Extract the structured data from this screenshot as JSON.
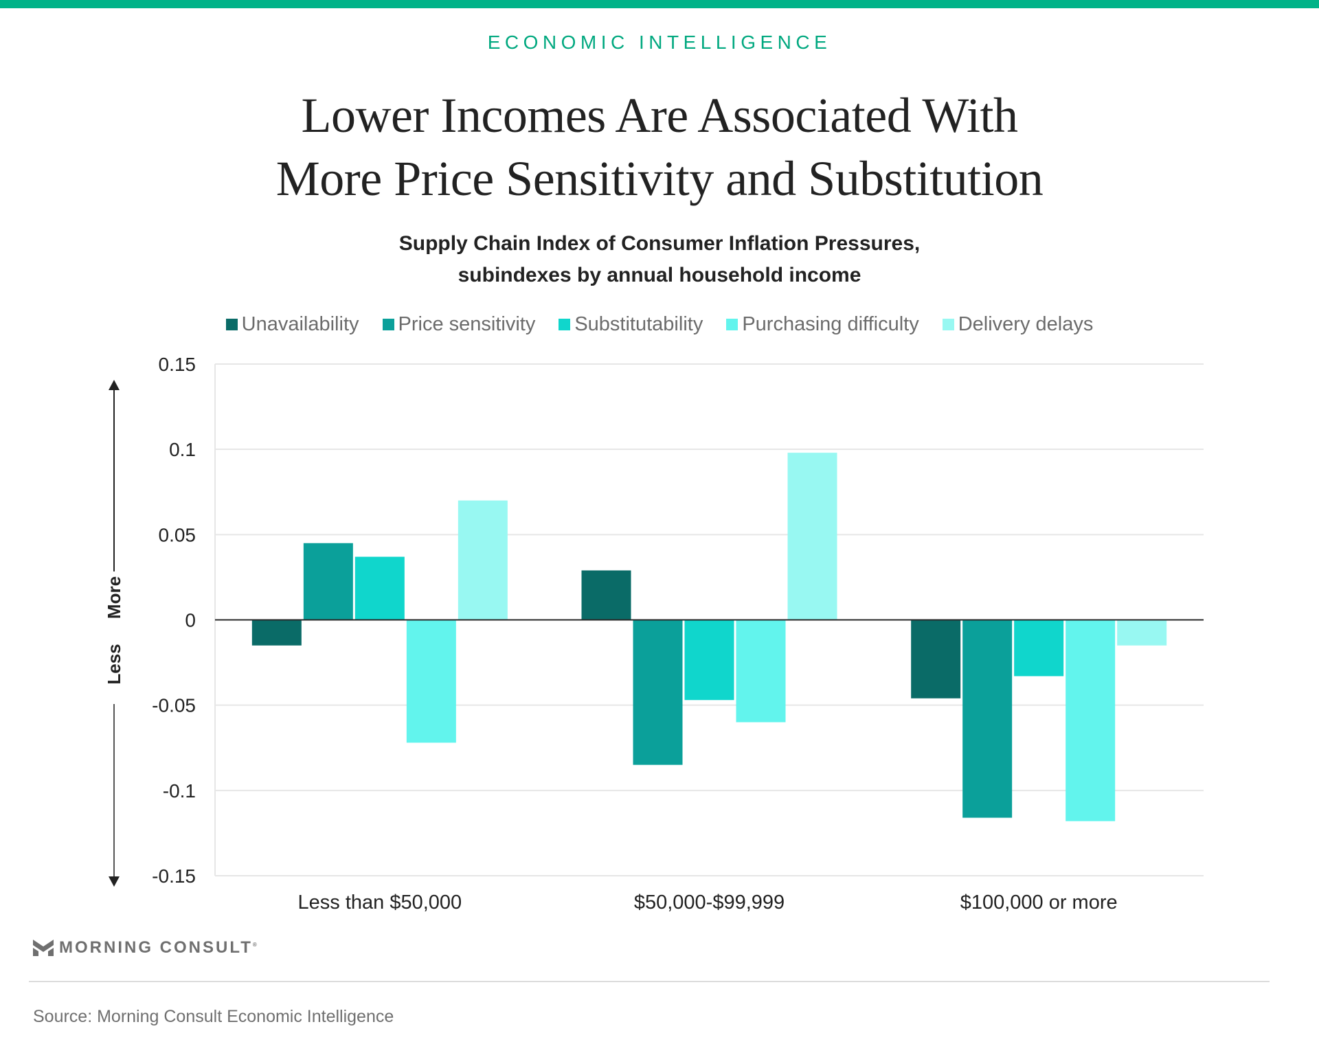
{
  "header": {
    "kicker": "ECONOMIC INTELLIGENCE",
    "title_line1": "Lower Incomes Are Associated With",
    "title_line2": "More Price Sensitivity and Substitution",
    "subtitle_line1": "Supply Chain Index of Consumer Inflation Pressures,",
    "subtitle_line2": "subindexes by annual household income",
    "brand_color": "#00b388"
  },
  "footer": {
    "logo_text": "MORNING CONSULT",
    "logo_mark": "®",
    "source": "Source: Morning Consult Economic Intelligence"
  },
  "chart_data": {
    "type": "bar",
    "title": "Supply Chain Index of Consumer Inflation Pressures, subindexes by annual household income",
    "categories": [
      "Less than $50,000",
      "$50,000-$99,999",
      "$100,000 or more"
    ],
    "series": [
      {
        "name": "Unavailability",
        "color": "#0a6b67",
        "values": [
          -0.015,
          0.029,
          -0.046
        ]
      },
      {
        "name": "Price sensitivity",
        "color": "#0ba09a",
        "values": [
          0.045,
          -0.085,
          -0.116
        ]
      },
      {
        "name": "Substitutability",
        "color": "#10d6cc",
        "values": [
          0.037,
          -0.047,
          -0.033
        ]
      },
      {
        "name": "Purchasing difficulty",
        "color": "#62f4ed",
        "values": [
          -0.072,
          -0.06,
          -0.118
        ]
      },
      {
        "name": "Delivery delays",
        "color": "#98f8f2",
        "values": [
          0.07,
          0.098,
          -0.015
        ]
      }
    ],
    "ylim": [
      -0.15,
      0.15
    ],
    "yticks": [
      0.15,
      0.1,
      0.05,
      0,
      -0.05,
      -0.1,
      -0.15
    ],
    "ytick_labels": [
      "0.15",
      "0.1",
      "0.05",
      "0",
      "-0.05",
      "-0.1",
      "-0.15"
    ],
    "xlabel": "",
    "ylabel": "",
    "direction_labels": {
      "up": "More",
      "down": "Less"
    },
    "grid": true,
    "legend": "top"
  }
}
